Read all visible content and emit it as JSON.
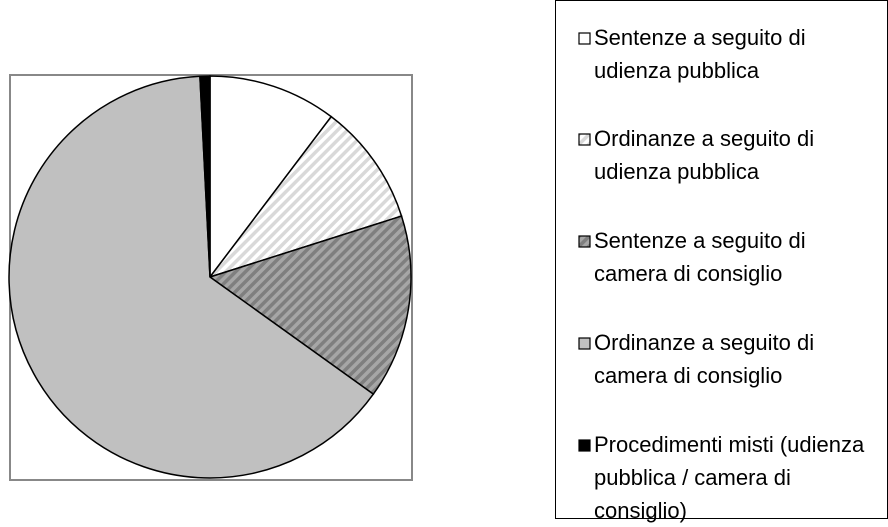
{
  "chart_data": {
    "type": "pie",
    "categories": [
      "Sentenze a seguito di udienza pubblica",
      "Ordinanze a seguito di udienza pubblica",
      "Sentenze a seguito di camera di consiglio",
      "Ordinanze a seguito di camera di consiglio",
      "Procedimenti misti (udienza pubblica / camera di consiglio)"
    ],
    "values": [
      10.3,
      9.8,
      14.8,
      64.3,
      0.8
    ],
    "colors": [
      "#ffffff",
      "#d9d9d9",
      "#7f7f7f",
      "#c0c0c0",
      "#000000"
    ],
    "hatched": [
      false,
      true,
      true,
      false,
      false
    ]
  }
}
